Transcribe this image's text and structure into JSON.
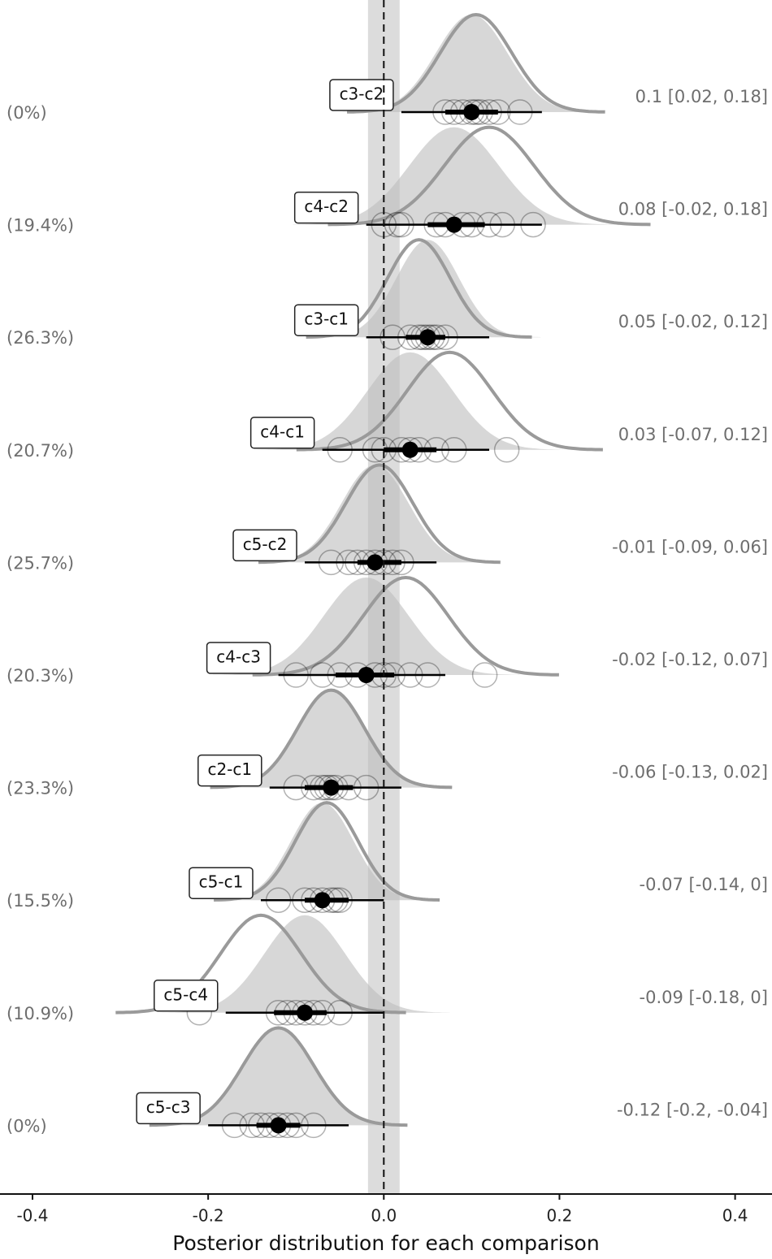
{
  "chart_data": {
    "type": "halfeye",
    "xlabel": "Posterior distribution for each comparison",
    "xlim": [
      -0.437,
      0.442
    ],
    "xticks": [
      -0.4,
      -0.2,
      {
        "value": 0,
        "label": "0.0"
      },
      0.2,
      0.4
    ],
    "rope": [
      -0.018,
      0.018
    ],
    "reference": 0,
    "fill_color": "#bdbdbd",
    "outline_color": "#9a9a9a",
    "rows": [
      {
        "label": "c3-c2",
        "percent": "(0%)",
        "summary": "0.1 [0.02, 0.18]",
        "estimate": 0.1,
        "lower": 0.02,
        "upper": 0.18,
        "inner": [
          0.07,
          0.13
        ],
        "outline_center": 0.105,
        "points": [
          0.07,
          0.08,
          0.09,
          0.1,
          0.105,
          0.11,
          0.12,
          0.13,
          0.155
        ]
      },
      {
        "label": "c4-c2",
        "percent": "(19.4%)",
        "summary": "0.08 [-0.02, 0.18]",
        "estimate": 0.08,
        "lower": -0.02,
        "upper": 0.18,
        "inner": [
          0.05,
          0.115
        ],
        "outline_center": 0.12,
        "points": [
          0.0,
          0.015,
          0.02,
          0.06,
          0.07,
          0.09,
          0.1,
          0.12,
          0.135,
          0.17
        ]
      },
      {
        "label": "c3-c1",
        "percent": "(26.3%)",
        "summary": "0.05 [-0.02, 0.12]",
        "estimate": 0.05,
        "lower": -0.02,
        "upper": 0.12,
        "inner": [
          0.025,
          0.07
        ],
        "outline_center": 0.04,
        "points": [
          0.01,
          0.03,
          0.04,
          0.045,
          0.05,
          0.055,
          0.06,
          0.07
        ]
      },
      {
        "label": "c4-c1",
        "percent": "(20.7%)",
        "summary": "0.03 [-0.07, 0.12]",
        "estimate": 0.03,
        "lower": -0.07,
        "upper": 0.12,
        "inner": [
          0.0,
          0.06
        ],
        "outline_center": 0.075,
        "points": [
          -0.05,
          -0.01,
          0.0,
          0.02,
          0.03,
          0.04,
          0.06,
          0.08,
          0.14
        ]
      },
      {
        "label": "c5-c2",
        "percent": "(25.7%)",
        "summary": "-0.01 [-0.09, 0.06]",
        "estimate": -0.01,
        "lower": -0.09,
        "upper": 0.06,
        "inner": [
          -0.03,
          0.02
        ],
        "outline_center": -0.005,
        "points": [
          -0.06,
          -0.04,
          -0.03,
          -0.02,
          -0.01,
          0.0,
          0.01,
          0.02
        ]
      },
      {
        "label": "c4-c3",
        "percent": "(20.3%)",
        "summary": "-0.02 [-0.12, 0.07]",
        "estimate": -0.02,
        "lower": -0.12,
        "upper": 0.07,
        "inner": [
          -0.055,
          0.012
        ],
        "outline_center": 0.025,
        "points": [
          -0.1,
          -0.07,
          -0.05,
          -0.03,
          -0.01,
          0.0,
          0.01,
          0.03,
          0.05,
          0.115
        ]
      },
      {
        "label": "c2-c1",
        "percent": "(23.3%)",
        "summary": "-0.06 [-0.13, 0.02]",
        "estimate": -0.06,
        "lower": -0.13,
        "upper": 0.02,
        "inner": [
          -0.09,
          -0.035
        ],
        "outline_center": -0.06,
        "points": [
          -0.1,
          -0.08,
          -0.07,
          -0.065,
          -0.06,
          -0.055,
          -0.04,
          -0.02
        ]
      },
      {
        "label": "c5-c1",
        "percent": "(15.5%)",
        "summary": "-0.07 [-0.14, 0]",
        "estimate": -0.07,
        "lower": -0.14,
        "upper": 0,
        "inner": [
          -0.09,
          -0.04
        ],
        "outline_center": -0.065,
        "points": [
          -0.12,
          -0.09,
          -0.08,
          -0.07,
          -0.06,
          -0.055,
          -0.05
        ]
      },
      {
        "label": "c5-c4",
        "percent": "(10.9%)",
        "summary": "-0.09 [-0.18, 0]",
        "estimate": -0.09,
        "lower": -0.18,
        "upper": 0,
        "inner": [
          -0.125,
          -0.065
        ],
        "outline_center": -0.14,
        "points": [
          -0.21,
          -0.12,
          -0.11,
          -0.1,
          -0.09,
          -0.08,
          -0.07,
          -0.05
        ]
      },
      {
        "label": "c5-c3",
        "percent": "(0%)",
        "summary": "-0.12 [-0.2, -0.04]",
        "estimate": -0.12,
        "lower": -0.2,
        "upper": -0.04,
        "inner": [
          -0.145,
          -0.095
        ],
        "outline_center": -0.12,
        "points": [
          -0.17,
          -0.15,
          -0.14,
          -0.13,
          -0.12,
          -0.11,
          -0.1,
          -0.08
        ]
      }
    ]
  }
}
